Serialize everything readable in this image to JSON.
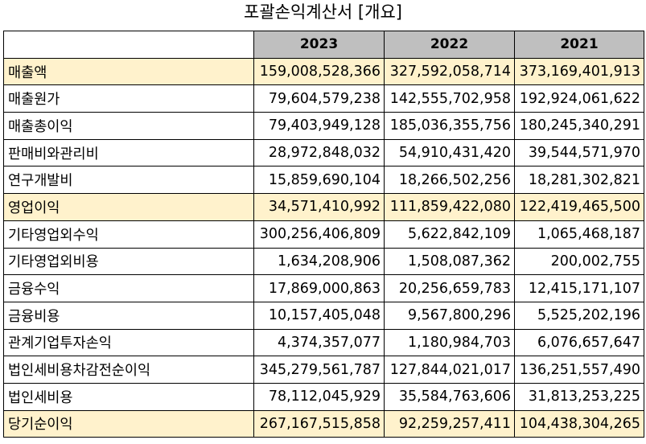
{
  "title": "포괄손익계산서 [개요]",
  "columns": [
    "2023",
    "2022",
    "2021"
  ],
  "rows": [
    {
      "label": "매출액",
      "values": [
        "159,008,528,366",
        "327,592,058,714",
        "373,169,401,913"
      ],
      "highlight": true
    },
    {
      "label": "매출원가",
      "values": [
        "79,604,579,238",
        "142,555,702,958",
        "192,924,061,622"
      ],
      "highlight": false
    },
    {
      "label": "매출총이익",
      "values": [
        "79,403,949,128",
        "185,036,355,756",
        "180,245,340,291"
      ],
      "highlight": false
    },
    {
      "label": "판매비와관리비",
      "values": [
        "28,972,848,032",
        "54,910,431,420",
        "39,544,571,970"
      ],
      "highlight": false
    },
    {
      "label": "연구개발비",
      "values": [
        "15,859,690,104",
        "18,266,502,256",
        "18,281,302,821"
      ],
      "highlight": false
    },
    {
      "label": "영업이익",
      "values": [
        "34,571,410,992",
        "111,859,422,080",
        "122,419,465,500"
      ],
      "highlight": true
    },
    {
      "label": "기타영업외수익",
      "values": [
        "300,256,406,809",
        "5,622,842,109",
        "1,065,468,187"
      ],
      "highlight": false
    },
    {
      "label": "기타영업외비용",
      "values": [
        "1,634,208,906",
        "1,508,087,362",
        "200,002,755"
      ],
      "highlight": false
    },
    {
      "label": "금융수익",
      "values": [
        "17,869,000,863",
        "20,256,659,783",
        "12,415,171,107"
      ],
      "highlight": false
    },
    {
      "label": "금융비용",
      "values": [
        "10,157,405,048",
        "9,567,800,296",
        "5,525,202,196"
      ],
      "highlight": false
    },
    {
      "label": "관계기업투자손익",
      "values": [
        "4,374,357,077",
        "1,180,984,703",
        "6,076,657,647"
      ],
      "highlight": false
    },
    {
      "label": "법인세비용차감전순이익",
      "values": [
        "345,279,561,787",
        "127,844,021,017",
        "136,251,557,490"
      ],
      "highlight": false
    },
    {
      "label": "법인세비용",
      "values": [
        "78,112,045,929",
        "35,584,763,606",
        "31,813,253,225"
      ],
      "highlight": false
    },
    {
      "label": "당기순이익",
      "values": [
        "267,167,515,858",
        "92,259,257,411",
        "104,438,304,265"
      ],
      "highlight": true
    }
  ]
}
